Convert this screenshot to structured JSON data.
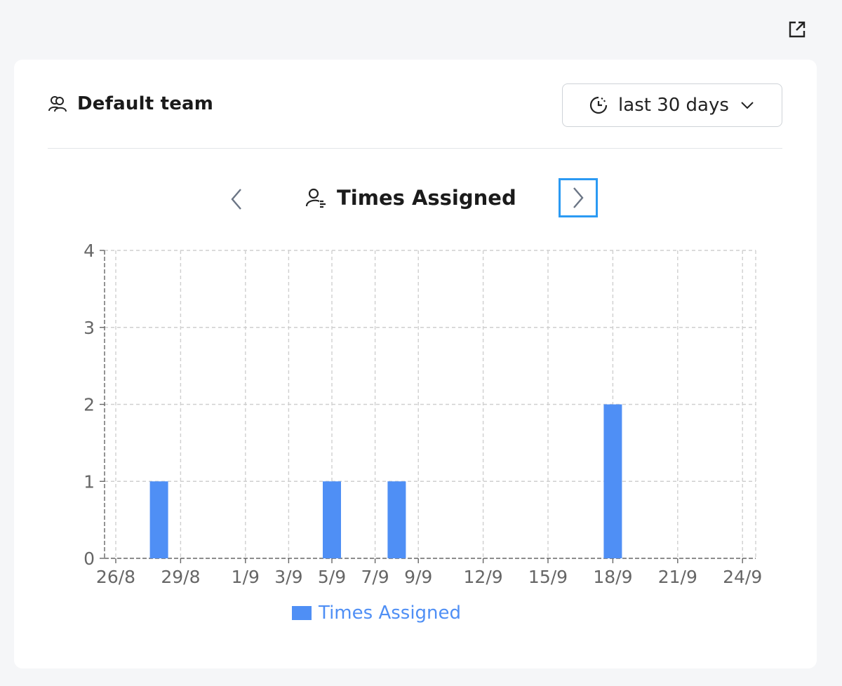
{
  "header": {
    "team_label": "Default team",
    "range_label": "last 30 days"
  },
  "nav": {
    "title": "Times Assigned"
  },
  "icons": {
    "external": "external-link-icon",
    "team": "users-icon",
    "clock": "clock-icon",
    "dropdown": "chevron-down-icon",
    "prev": "chevron-left-icon",
    "next": "chevron-right-icon",
    "metric": "user-assigned-icon"
  },
  "colors": {
    "bar": "#4f8ff5",
    "focus": "#2b9af3"
  },
  "chart_data": {
    "type": "bar",
    "x_tick_labels": [
      "26/8",
      "29/8",
      "1/9",
      "3/9",
      "5/9",
      "7/9",
      "9/9",
      "12/9",
      "15/9",
      "18/9",
      "21/9",
      "24/9"
    ],
    "y_ticks": [
      0,
      1,
      2,
      3,
      4
    ],
    "ylim": [
      0,
      4
    ],
    "series": [
      {
        "name": "Times Assigned",
        "points": [
          {
            "x": "28/8",
            "y": 1
          },
          {
            "x": "5/9",
            "y": 1
          },
          {
            "x": "8/9",
            "y": 1
          },
          {
            "x": "18/9",
            "y": 2
          }
        ]
      }
    ],
    "legend": "bottom",
    "grid": true
  }
}
